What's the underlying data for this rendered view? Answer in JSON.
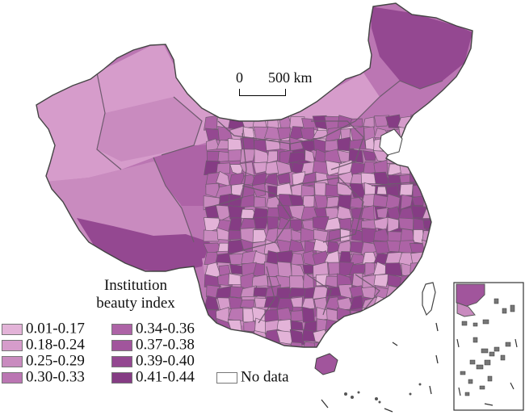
{
  "scale_bar": {
    "zero_label": "0",
    "distance_label": "500 km"
  },
  "legend": {
    "title_line1": "Institution",
    "title_line2": "beauty index",
    "items": [
      {
        "label": "0.01-0.17",
        "color": "#e3b3d8"
      },
      {
        "label": "0.18-0.24",
        "color": "#d69ccb"
      },
      {
        "label": "0.25-0.29",
        "color": "#c98bbf"
      },
      {
        "label": "0.30-0.33",
        "color": "#bb76b3"
      },
      {
        "label": "0.34-0.36",
        "color": "#ad63a6"
      },
      {
        "label": "0.37-0.38",
        "color": "#a1559c"
      },
      {
        "label": "0.39-0.40",
        "color": "#944891"
      },
      {
        "label": "0.41-0.44",
        "color": "#853c84"
      },
      {
        "label": "No data",
        "color": "#ffffff"
      }
    ]
  },
  "colors": {
    "border": "#6f5a6f",
    "coast": "#444444"
  }
}
